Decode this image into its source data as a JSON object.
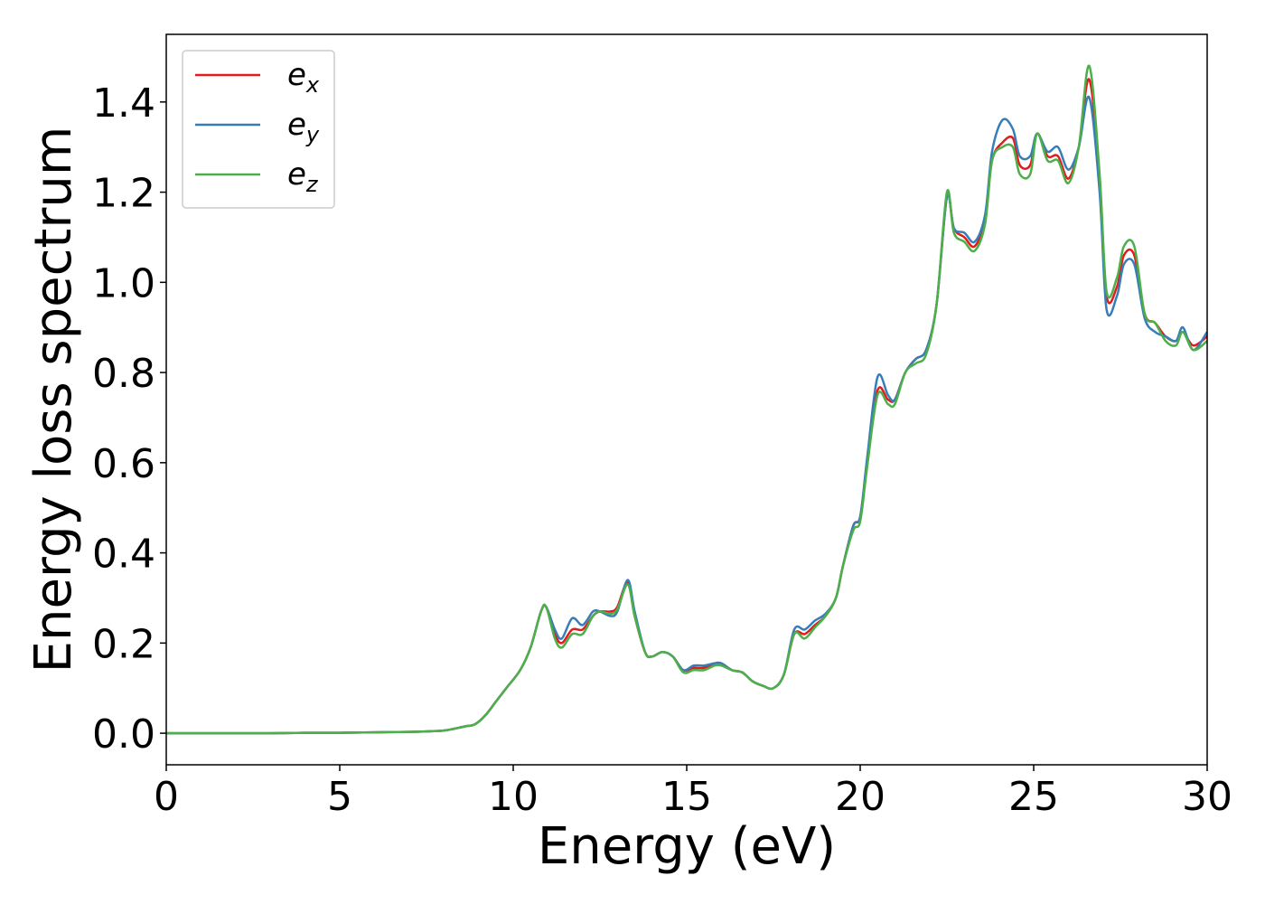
{
  "chart_data": {
    "type": "line",
    "title": "",
    "xlabel": "Energy (eV)",
    "ylabel": "Energy loss spectrum",
    "xlim": [
      0,
      30
    ],
    "ylim": [
      -0.07,
      1.55
    ],
    "xticks": [
      0,
      5,
      10,
      15,
      20,
      25,
      30
    ],
    "xtick_labels": [
      "0",
      "5",
      "10",
      "15",
      "20",
      "25",
      "30"
    ],
    "yticks": [
      0.0,
      0.2,
      0.4,
      0.6,
      0.8,
      1.0,
      1.2,
      1.4
    ],
    "ytick_labels": [
      "0.0",
      "0.2",
      "0.4",
      "0.6",
      "0.8",
      "1.0",
      "1.2",
      "1.4"
    ],
    "grid": false,
    "legend_position": "top-left",
    "series": [
      {
        "name": "e_x",
        "label_base": "e",
        "label_sub": "x",
        "color": "#e41a1c",
        "x": [
          0,
          1,
          2,
          3,
          4,
          5,
          6,
          7,
          7.5,
          8,
          8.3,
          8.6,
          8.9,
          9.2,
          9.5,
          9.8,
          10.2,
          10.5,
          10.8,
          10.95,
          11.2,
          11.4,
          11.7,
          12.0,
          12.3,
          12.5,
          12.8,
          13.0,
          13.3,
          13.5,
          13.8,
          14.0,
          14.3,
          14.6,
          14.9,
          15.2,
          15.5,
          15.8,
          16.0,
          16.3,
          16.6,
          16.9,
          17.2,
          17.5,
          17.8,
          18.1,
          18.4,
          18.7,
          19.0,
          19.3,
          19.5,
          19.8,
          20.0,
          20.2,
          20.5,
          20.8,
          21.0,
          21.3,
          21.6,
          21.9,
          22.2,
          22.5,
          22.7,
          23.0,
          23.3,
          23.6,
          23.8,
          24.1,
          24.4,
          24.6,
          24.9,
          25.1,
          25.4,
          25.7,
          26.0,
          26.3,
          26.6,
          26.9,
          27.1,
          27.4,
          27.6,
          27.9,
          28.2,
          28.5,
          28.8,
          29.1,
          29.3,
          29.6,
          30.0
        ],
        "y": [
          0.0,
          0.0,
          0.0,
          0.0,
          0.001,
          0.001,
          0.002,
          0.003,
          0.004,
          0.006,
          0.01,
          0.015,
          0.02,
          0.04,
          0.07,
          0.1,
          0.14,
          0.19,
          0.27,
          0.28,
          0.22,
          0.2,
          0.23,
          0.23,
          0.26,
          0.27,
          0.27,
          0.28,
          0.335,
          0.26,
          0.18,
          0.17,
          0.18,
          0.17,
          0.14,
          0.145,
          0.145,
          0.155,
          0.155,
          0.14,
          0.135,
          0.115,
          0.105,
          0.1,
          0.13,
          0.22,
          0.22,
          0.24,
          0.26,
          0.3,
          0.37,
          0.46,
          0.48,
          0.6,
          0.76,
          0.74,
          0.74,
          0.8,
          0.83,
          0.85,
          0.95,
          1.19,
          1.12,
          1.1,
          1.08,
          1.14,
          1.27,
          1.31,
          1.32,
          1.26,
          1.26,
          1.33,
          1.28,
          1.28,
          1.23,
          1.3,
          1.45,
          1.23,
          0.97,
          0.99,
          1.06,
          1.06,
          0.93,
          0.91,
          0.88,
          0.87,
          0.89,
          0.86,
          0.88
        ]
      },
      {
        "name": "e_y",
        "label_base": "e",
        "label_sub": "y",
        "color": "#377eb8",
        "x": [
          0,
          1,
          2,
          3,
          4,
          5,
          6,
          7,
          7.5,
          8,
          8.3,
          8.6,
          8.9,
          9.2,
          9.5,
          9.8,
          10.2,
          10.5,
          10.8,
          10.95,
          11.2,
          11.4,
          11.7,
          12.0,
          12.3,
          12.5,
          12.8,
          13.0,
          13.3,
          13.5,
          13.8,
          14.0,
          14.3,
          14.6,
          14.9,
          15.2,
          15.5,
          15.8,
          16.0,
          16.3,
          16.6,
          16.9,
          17.2,
          17.5,
          17.8,
          18.1,
          18.4,
          18.7,
          19.0,
          19.3,
          19.5,
          19.8,
          20.0,
          20.2,
          20.5,
          20.8,
          21.0,
          21.3,
          21.6,
          21.9,
          22.2,
          22.5,
          22.7,
          23.0,
          23.3,
          23.6,
          23.8,
          24.1,
          24.4,
          24.6,
          24.9,
          25.1,
          25.4,
          25.7,
          26.0,
          26.3,
          26.6,
          26.9,
          27.1,
          27.4,
          27.6,
          27.9,
          28.2,
          28.5,
          28.8,
          29.1,
          29.3,
          29.6,
          30.0
        ],
        "y": [
          0.0,
          0.0,
          0.0,
          0.0,
          0.001,
          0.001,
          0.002,
          0.003,
          0.004,
          0.006,
          0.01,
          0.015,
          0.02,
          0.04,
          0.07,
          0.1,
          0.14,
          0.19,
          0.27,
          0.28,
          0.23,
          0.21,
          0.255,
          0.24,
          0.27,
          0.27,
          0.26,
          0.27,
          0.34,
          0.27,
          0.18,
          0.17,
          0.18,
          0.17,
          0.14,
          0.15,
          0.15,
          0.155,
          0.155,
          0.14,
          0.135,
          0.115,
          0.105,
          0.1,
          0.13,
          0.23,
          0.23,
          0.25,
          0.265,
          0.3,
          0.37,
          0.46,
          0.48,
          0.61,
          0.79,
          0.75,
          0.74,
          0.8,
          0.83,
          0.85,
          0.95,
          1.19,
          1.12,
          1.11,
          1.09,
          1.15,
          1.29,
          1.36,
          1.34,
          1.28,
          1.28,
          1.33,
          1.29,
          1.3,
          1.25,
          1.3,
          1.41,
          1.2,
          0.94,
          0.97,
          1.04,
          1.04,
          0.92,
          0.89,
          0.88,
          0.87,
          0.9,
          0.85,
          0.89
        ]
      },
      {
        "name": "e_z",
        "label_base": "e",
        "label_sub": "z",
        "color": "#4daf4a",
        "x": [
          0,
          1,
          2,
          3,
          4,
          5,
          6,
          7,
          7.5,
          8,
          8.3,
          8.6,
          8.9,
          9.2,
          9.5,
          9.8,
          10.2,
          10.5,
          10.8,
          10.95,
          11.2,
          11.4,
          11.7,
          12.0,
          12.3,
          12.5,
          12.8,
          13.0,
          13.3,
          13.5,
          13.8,
          14.0,
          14.3,
          14.6,
          14.9,
          15.2,
          15.5,
          15.8,
          16.0,
          16.3,
          16.6,
          16.9,
          17.2,
          17.5,
          17.8,
          18.1,
          18.4,
          18.7,
          19.0,
          19.3,
          19.5,
          19.8,
          20.0,
          20.2,
          20.5,
          20.8,
          21.0,
          21.3,
          21.6,
          21.9,
          22.2,
          22.5,
          22.7,
          23.0,
          23.3,
          23.6,
          23.8,
          24.1,
          24.4,
          24.6,
          24.9,
          25.1,
          25.4,
          25.7,
          26.0,
          26.3,
          26.6,
          26.9,
          27.1,
          27.4,
          27.6,
          27.9,
          28.2,
          28.5,
          28.8,
          29.1,
          29.3,
          29.6,
          30.0
        ],
        "y": [
          0.0,
          0.0,
          0.0,
          0.0,
          0.001,
          0.001,
          0.002,
          0.003,
          0.004,
          0.006,
          0.01,
          0.015,
          0.02,
          0.04,
          0.07,
          0.1,
          0.14,
          0.19,
          0.27,
          0.28,
          0.21,
          0.19,
          0.22,
          0.22,
          0.26,
          0.27,
          0.265,
          0.275,
          0.33,
          0.26,
          0.18,
          0.17,
          0.18,
          0.17,
          0.135,
          0.14,
          0.14,
          0.15,
          0.15,
          0.14,
          0.135,
          0.115,
          0.105,
          0.1,
          0.13,
          0.22,
          0.21,
          0.235,
          0.26,
          0.3,
          0.37,
          0.45,
          0.47,
          0.59,
          0.75,
          0.73,
          0.73,
          0.8,
          0.82,
          0.84,
          0.95,
          1.2,
          1.11,
          1.09,
          1.07,
          1.13,
          1.27,
          1.3,
          1.3,
          1.24,
          1.24,
          1.33,
          1.27,
          1.27,
          1.22,
          1.3,
          1.48,
          1.24,
          0.98,
          1.01,
          1.08,
          1.08,
          0.93,
          0.91,
          0.87,
          0.86,
          0.89,
          0.85,
          0.87
        ]
      }
    ]
  }
}
